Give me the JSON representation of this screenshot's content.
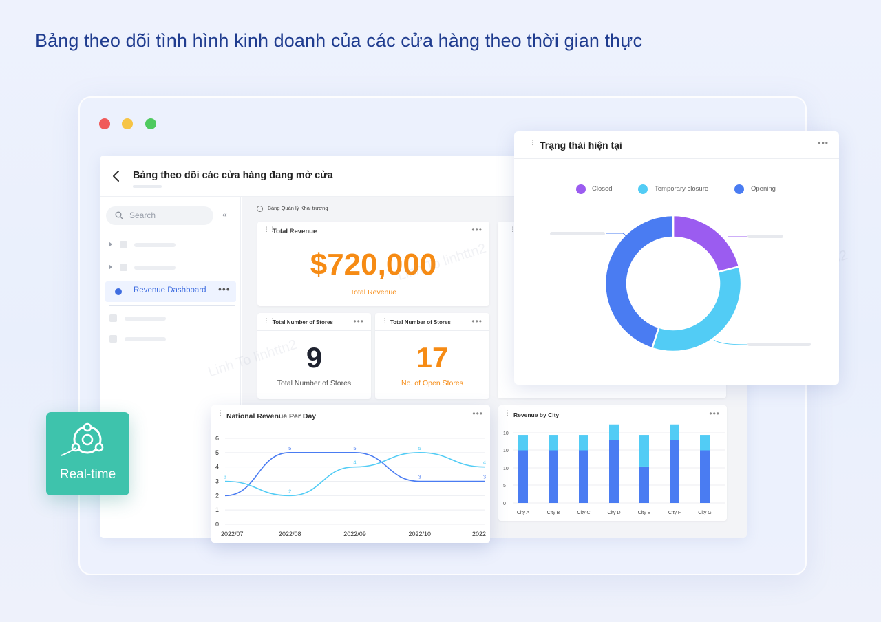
{
  "headline": "Bảng theo dõi tình hình kinh doanh của các cửa hàng theo thời gian thực",
  "app": {
    "title": "Bảng theo dõi các cửa hàng đang mở cửa",
    "breadcrumb": "Bảng Quản lý Khai trương"
  },
  "sidebar": {
    "search_placeholder": "Search",
    "active_item": "Revenue Dashboard"
  },
  "cards": {
    "total_revenue": {
      "title": "Total Revenue",
      "value": "$720,000",
      "label": "Total Revenue"
    },
    "total_stores": {
      "title": "Total Number of Stores",
      "value": "9",
      "label": "Total Number of Stores"
    },
    "open_stores": {
      "title": "Total Number of Stores",
      "value": "17",
      "label": "No. of Open Stores"
    }
  },
  "status_panel": {
    "title": "Trạng thái hiện tại",
    "legend": [
      {
        "label": "Closed",
        "color": "#9b5cf0"
      },
      {
        "label": "Temporary closure",
        "color": "#52ccf5"
      },
      {
        "label": "Opening",
        "color": "#4a7cf2"
      }
    ]
  },
  "badge": {
    "label": "Real-time"
  },
  "watermark": "Linh To linhttn2",
  "colors": {
    "accent_orange": "#f68b14",
    "primary_blue": "#4a7cf2",
    "light_blue": "#52ccf5",
    "purple": "#9b5cf0",
    "teal": "#3ec3ac"
  },
  "chart_data": [
    {
      "type": "pie",
      "title": "Trạng thái hiện tại",
      "labels": [
        "Closed",
        "Temporary closure",
        "Opening"
      ],
      "values": [
        21,
        34,
        45
      ],
      "donut": true,
      "legend": "top"
    },
    {
      "type": "line",
      "title": "National Revenue Per Day",
      "x": [
        "2022/07",
        "2022/08",
        "2022/09",
        "2022/10",
        "2022"
      ],
      "series": [
        {
          "values": [
            2,
            5,
            5,
            3,
            3
          ]
        },
        {
          "values": [
            3,
            2,
            4,
            5,
            4
          ]
        }
      ],
      "ylim": [
        0,
        6
      ],
      "yticks": [
        0,
        1,
        2,
        3,
        4,
        5,
        6
      ],
      "point_labels": [
        {
          "x": "2022/08",
          "text": "5"
        },
        {
          "x": "2022/09",
          "text": "5"
        },
        {
          "x": "2022/10",
          "text": "3"
        },
        {
          "x": "2022",
          "text": "3"
        },
        {
          "x": "2022/07",
          "text": "3"
        },
        {
          "x": "2022/08",
          "text": "2"
        },
        {
          "x": "2022/09",
          "text": "4"
        },
        {
          "x": "2022/10",
          "text": "5"
        },
        {
          "x": "2022",
          "text": "4"
        }
      ],
      "grid": true
    },
    {
      "type": "bar",
      "title": "Revenue by City",
      "categories": [
        "City A",
        "City B",
        "City C",
        "City D",
        "City E",
        "City F",
        "City G"
      ],
      "series": [
        {
          "values": [
            7.5,
            7.5,
            7.5,
            9,
            5.2,
            9,
            7.5
          ]
        },
        {
          "values": [
            2.2,
            2.2,
            2.2,
            2.2,
            4.5,
            2.2,
            2.2
          ]
        }
      ],
      "stacked": true,
      "ylim": [
        0,
        20
      ],
      "yticks": [
        "0",
        "5",
        "10",
        "10",
        "10"
      ],
      "grid": true
    }
  ]
}
